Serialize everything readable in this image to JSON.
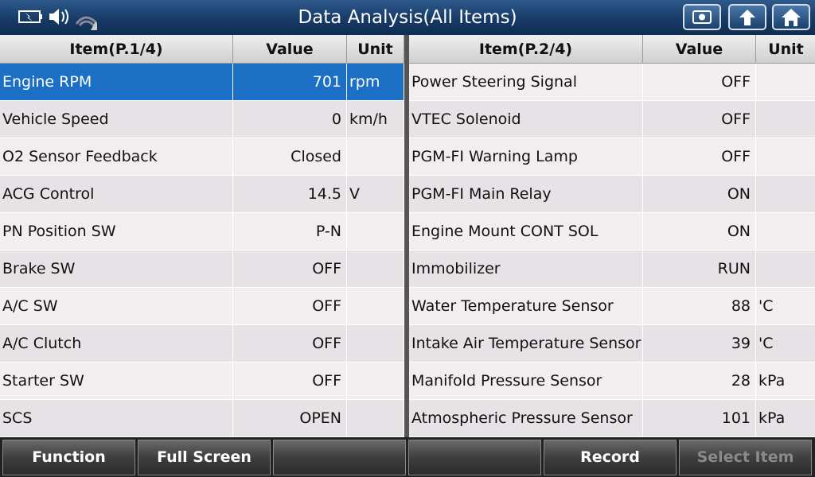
{
  "header": {
    "title": "Data Analysis(All Items)"
  },
  "tables": [
    {
      "columns": [
        "Item(P.1/4)",
        "Value",
        "Unit"
      ],
      "rows": [
        {
          "item": "Engine RPM",
          "value": "701",
          "unit": "rpm",
          "selected": true
        },
        {
          "item": "Vehicle Speed",
          "value": "0",
          "unit": "km/h"
        },
        {
          "item": "O2 Sensor Feedback",
          "value": "Closed"
        },
        {
          "item": "ACG Control",
          "value": "14.5",
          "unit": "V"
        },
        {
          "item": "PN Position SW",
          "value": "P-N"
        },
        {
          "item": "Brake SW",
          "value": "OFF"
        },
        {
          "item": "A/C SW",
          "value": "OFF"
        },
        {
          "item": "A/C Clutch",
          "value": "OFF"
        },
        {
          "item": "Starter SW",
          "value": "OFF"
        },
        {
          "item": "SCS",
          "value": "OPEN"
        }
      ]
    },
    {
      "columns": [
        "Item(P.2/4)",
        "Value",
        "Unit"
      ],
      "rows": [
        {
          "item": "Power Steering Signal",
          "value": "OFF"
        },
        {
          "item": "VTEC Solenoid",
          "value": "OFF"
        },
        {
          "item": "PGM-FI Warning Lamp",
          "value": "OFF"
        },
        {
          "item": "PGM-FI Main Relay",
          "value": "ON"
        },
        {
          "item": "Engine Mount CONT SOL",
          "value": "ON"
        },
        {
          "item": "Immobilizer",
          "value": "RUN"
        },
        {
          "item": "Water Temperature Sensor",
          "value": "88",
          "unit": "'C"
        },
        {
          "item": "Intake Air Temperature Sensor",
          "value": "39",
          "unit": "'C"
        },
        {
          "item": "Manifold Pressure Sensor",
          "value": "28",
          "unit": "kPa"
        },
        {
          "item": "Atmospheric Pressure Sensor",
          "value": "101",
          "unit": "kPa"
        }
      ]
    }
  ],
  "buttons": {
    "function": "Function",
    "full_screen": "Full Screen",
    "record": "Record",
    "select_item": "Select Item"
  }
}
